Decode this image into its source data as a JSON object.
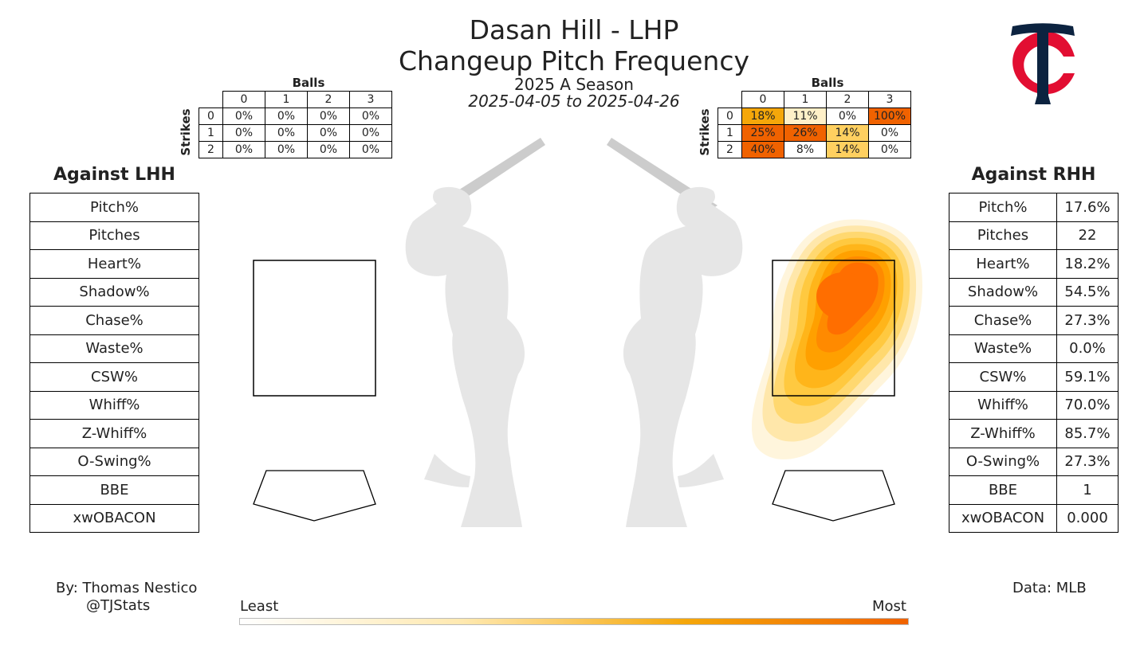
{
  "header": {
    "title_line1": "Dasan Hill - LHP",
    "title_line2": "Changeup Pitch Frequency",
    "season": "2025 A Season",
    "date_range": "2025-04-05 to 2025-04-26"
  },
  "logo": {
    "icon": "twins-tc-logo-icon",
    "colors": {
      "navy": "#0C2340",
      "red": "#E20E32"
    }
  },
  "count_tables": {
    "balls_label": "Balls",
    "strikes_label": "Strikes",
    "ball_headers": [
      "0",
      "1",
      "2",
      "3"
    ],
    "strike_headers": [
      "0",
      "1",
      "2"
    ],
    "lhh": [
      [
        "0%",
        "0%",
        "0%",
        "0%"
      ],
      [
        "0%",
        "0%",
        "0%",
        "0%"
      ],
      [
        "0%",
        "0%",
        "0%",
        "0%"
      ]
    ],
    "rhh": [
      [
        "18%",
        "11%",
        "0%",
        "100%"
      ],
      [
        "25%",
        "26%",
        "14%",
        "0%"
      ],
      [
        "40%",
        "8%",
        "14%",
        "0%"
      ]
    ],
    "rhh_colors": [
      [
        "#F5A70A",
        "#FFF0C8",
        "#FFFFFF",
        "#F06200"
      ],
      [
        "#F06200",
        "#F06200",
        "#FFD060",
        "#FFFFFF"
      ],
      [
        "#F06200",
        "#FFFFFF",
        "#FFD060",
        "#FFFFFF"
      ]
    ]
  },
  "lhh_panel": {
    "heading": "Against LHH",
    "labels": [
      "Pitch%",
      "Pitches",
      "Heart%",
      "Shadow%",
      "Chase%",
      "Waste%",
      "CSW%",
      "Whiff%",
      "Z-Whiff%",
      "O-Swing%",
      "BBE",
      "xwOBACON"
    ]
  },
  "rhh_panel": {
    "heading": "Against RHH",
    "labels": [
      "Pitch%",
      "Pitches",
      "Heart%",
      "Shadow%",
      "Chase%",
      "Waste%",
      "CSW%",
      "Whiff%",
      "Z-Whiff%",
      "O-Swing%",
      "BBE",
      "xwOBACON"
    ],
    "values": [
      "17.6%",
      "22",
      "18.2%",
      "54.5%",
      "27.3%",
      "0.0%",
      "59.1%",
      "70.0%",
      "85.7%",
      "27.3%",
      "1",
      "0.000"
    ]
  },
  "footer": {
    "author": "By: Thomas Nestico",
    "handle": "@TJStats",
    "source": "Data: MLB"
  },
  "colorbar": {
    "min_label": "Least",
    "max_label": "Most",
    "colors": [
      "#FFFFFF",
      "#FFE9B0",
      "#F5A70A",
      "#F06200"
    ]
  },
  "chart_data": {
    "type": "heatmap",
    "description_levels": 8,
    "density_colors": [
      "#FFF5DC",
      "#FFE7AA",
      "#FFD870",
      "#FFC940",
      "#FFB51A",
      "#FFA000",
      "#FF8A00",
      "#FF6E00"
    ]
  }
}
